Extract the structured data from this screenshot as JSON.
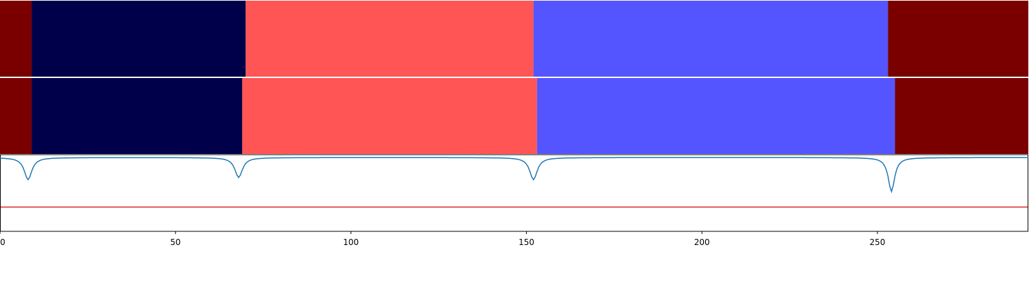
{
  "chart_data": [
    {
      "type": "heatmap",
      "panel": "true-segmentation",
      "xlim": [
        0,
        293
      ],
      "segments": [
        {
          "start": 0,
          "end": 9,
          "color": "#7a0000"
        },
        {
          "start": 9,
          "end": 70,
          "color": "#00004a"
        },
        {
          "start": 70,
          "end": 152,
          "color": "#ff5555"
        },
        {
          "start": 152,
          "end": 253,
          "color": "#5555ff"
        },
        {
          "start": 253,
          "end": 293,
          "color": "#7a0000"
        }
      ]
    },
    {
      "type": "heatmap",
      "panel": "predicted-segmentation",
      "xlim": [
        0,
        293
      ],
      "segments": [
        {
          "start": 0,
          "end": 9,
          "color": "#7a0000"
        },
        {
          "start": 9,
          "end": 69,
          "color": "#00004a"
        },
        {
          "start": 69,
          "end": 153,
          "color": "#ff5555"
        },
        {
          "start": 153,
          "end": 255,
          "color": "#5555ff"
        },
        {
          "start": 255,
          "end": 293,
          "color": "#7a0000"
        }
      ]
    },
    {
      "type": "line",
      "panel": "score-signal",
      "xlim": [
        0,
        293
      ],
      "ylim": [
        -1,
        0.02
      ],
      "xticks": [
        0,
        50,
        100,
        150,
        200,
        250
      ],
      "threshold": {
        "y": -0.68,
        "color": "#d62728"
      },
      "line_color": "#1f77b4",
      "baseline": -0.01,
      "dips": [
        {
          "x": 8,
          "depth": -0.3,
          "width": 1.3
        },
        {
          "x": 68,
          "depth": -0.27,
          "width": 1.3
        },
        {
          "x": 152,
          "depth": -0.3,
          "width": 1.3
        },
        {
          "x": 254,
          "depth": -0.46,
          "width": 1.1
        }
      ]
    }
  ]
}
